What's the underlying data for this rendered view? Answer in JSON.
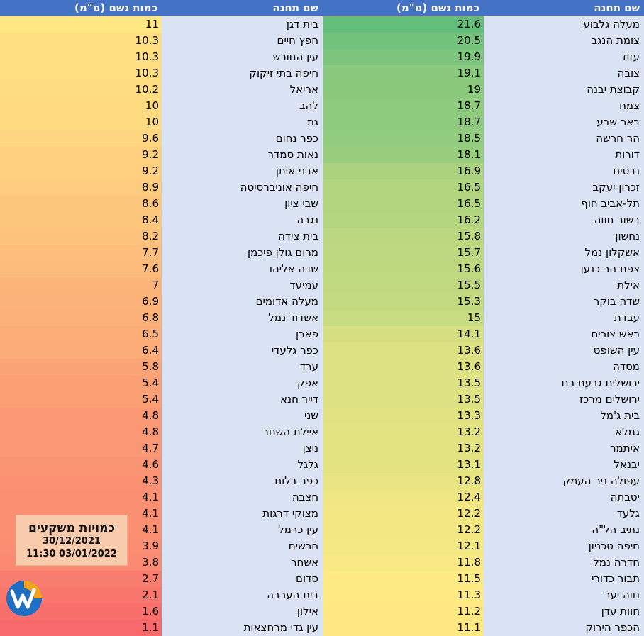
{
  "headers": {
    "station_name": "שם תחנה",
    "rain_amount": "כמות גשם (מ\"מ)"
  },
  "colors": {
    "header_bg": "#4472c4",
    "name_bg": "#dae3f3",
    "high": "#63be7b",
    "mid": "#ffeb84",
    "low": "#f8696b"
  },
  "legend": {
    "title": "כמויות משקעים",
    "date_from": "30/12/2021",
    "date_to": "03/01/2022 11:30",
    "logo_icon": "weather-brand-logo-icon"
  },
  "right_table": [
    {
      "name": "מעלה גלבוע",
      "value": "21.6"
    },
    {
      "name": "צומת הנגב",
      "value": "20.5"
    },
    {
      "name": "עזוז",
      "value": "19.9"
    },
    {
      "name": "צובה",
      "value": "19.1"
    },
    {
      "name": "קבוצת יבנה",
      "value": "19"
    },
    {
      "name": "צמח",
      "value": "18.7"
    },
    {
      "name": "באר שבע",
      "value": "18.7"
    },
    {
      "name": "הר חרשה",
      "value": "18.5"
    },
    {
      "name": "דורות",
      "value": "18.1"
    },
    {
      "name": "נבטים",
      "value": "16.9"
    },
    {
      "name": "זכרון יעקב",
      "value": "16.5"
    },
    {
      "name": "תל-אביב חוף",
      "value": "16.5"
    },
    {
      "name": "בשור חווה",
      "value": "16.2"
    },
    {
      "name": "נחשון",
      "value": "15.8"
    },
    {
      "name": "אשקלון נמל",
      "value": "15.7"
    },
    {
      "name": "צפת הר כנען",
      "value": "15.6"
    },
    {
      "name": "אילת",
      "value": "15.5"
    },
    {
      "name": "שדה בוקר",
      "value": "15.3"
    },
    {
      "name": "עבדת",
      "value": "15"
    },
    {
      "name": "ראש צורים",
      "value": "14.1"
    },
    {
      "name": "עין השופט",
      "value": "13.6"
    },
    {
      "name": "מסדה",
      "value": "13.6"
    },
    {
      "name": "ירושלים גבעת רם",
      "value": "13.5"
    },
    {
      "name": "ירושלים מרכז",
      "value": "13.5"
    },
    {
      "name": "בית ג'מל",
      "value": "13.3"
    },
    {
      "name": "גמלא",
      "value": "13.2"
    },
    {
      "name": "איתמר",
      "value": "13.2"
    },
    {
      "name": "יבנאל",
      "value": "13.1"
    },
    {
      "name": "עפולה ניר העמק",
      "value": "12.8"
    },
    {
      "name": "יטבתה",
      "value": "12.4"
    },
    {
      "name": "גלעד",
      "value": "12.2"
    },
    {
      "name": "נתיב הל\"ה",
      "value": "12.2"
    },
    {
      "name": "חיפה טכניון",
      "value": "12.1"
    },
    {
      "name": "חדרה נמל",
      "value": "11.8"
    },
    {
      "name": "תבור כדורי",
      "value": "11.5"
    },
    {
      "name": "נווה יער",
      "value": "11.3"
    },
    {
      "name": "חוות עדן",
      "value": "11.2"
    },
    {
      "name": "הכפר הירוק",
      "value": "11.1"
    }
  ],
  "left_table": [
    {
      "name": "בית דגן",
      "value": "11"
    },
    {
      "name": "חפץ חיים",
      "value": "10.3"
    },
    {
      "name": "עין החורש",
      "value": "10.3"
    },
    {
      "name": "חיפה בתי זיקוק",
      "value": "10.3"
    },
    {
      "name": "אריאל",
      "value": "10.2"
    },
    {
      "name": "להב",
      "value": "10"
    },
    {
      "name": "גת",
      "value": "10"
    },
    {
      "name": "כפר נחום",
      "value": "9.6"
    },
    {
      "name": "נאות סמדר",
      "value": "9.2"
    },
    {
      "name": "אבני איתן",
      "value": "9.2"
    },
    {
      "name": "חיפה אוניברסיטה",
      "value": "8.9"
    },
    {
      "name": "שבי ציון",
      "value": "8.6"
    },
    {
      "name": "נגבה",
      "value": "8.4"
    },
    {
      "name": "בית צידה",
      "value": "8.2"
    },
    {
      "name": "מרום גולן פיכמן",
      "value": "7.7"
    },
    {
      "name": "שדה אליהו",
      "value": "7.6"
    },
    {
      "name": "עמיעד",
      "value": "7"
    },
    {
      "name": "מעלה אדומים",
      "value": "6.9"
    },
    {
      "name": "אשדוד נמל",
      "value": "6.8"
    },
    {
      "name": "פארן",
      "value": "6.5"
    },
    {
      "name": "כפר גלעדי",
      "value": "6.4"
    },
    {
      "name": "ערד",
      "value": "5.8"
    },
    {
      "name": "אפק",
      "value": "5.4"
    },
    {
      "name": "דייר חנא",
      "value": "5.4"
    },
    {
      "name": "שני",
      "value": "4.8"
    },
    {
      "name": "איילת השחר",
      "value": "4.8"
    },
    {
      "name": "ניצן",
      "value": "4.7"
    },
    {
      "name": "גלגל",
      "value": "4.6"
    },
    {
      "name": "כפר בלום",
      "value": "4.3"
    },
    {
      "name": "חצבה",
      "value": "4.1"
    },
    {
      "name": "מצוקי דרגות",
      "value": "4.1"
    },
    {
      "name": "עין כרמל",
      "value": "4.1"
    },
    {
      "name": "חרשים",
      "value": "3.9"
    },
    {
      "name": "אשחר",
      "value": "3.8"
    },
    {
      "name": "סדום",
      "value": "2.7"
    },
    {
      "name": "בית הערבה",
      "value": "2.1"
    },
    {
      "name": "אילון",
      "value": "1.6"
    },
    {
      "name": "עין גדי מרחצאות",
      "value": "1.1"
    }
  ]
}
